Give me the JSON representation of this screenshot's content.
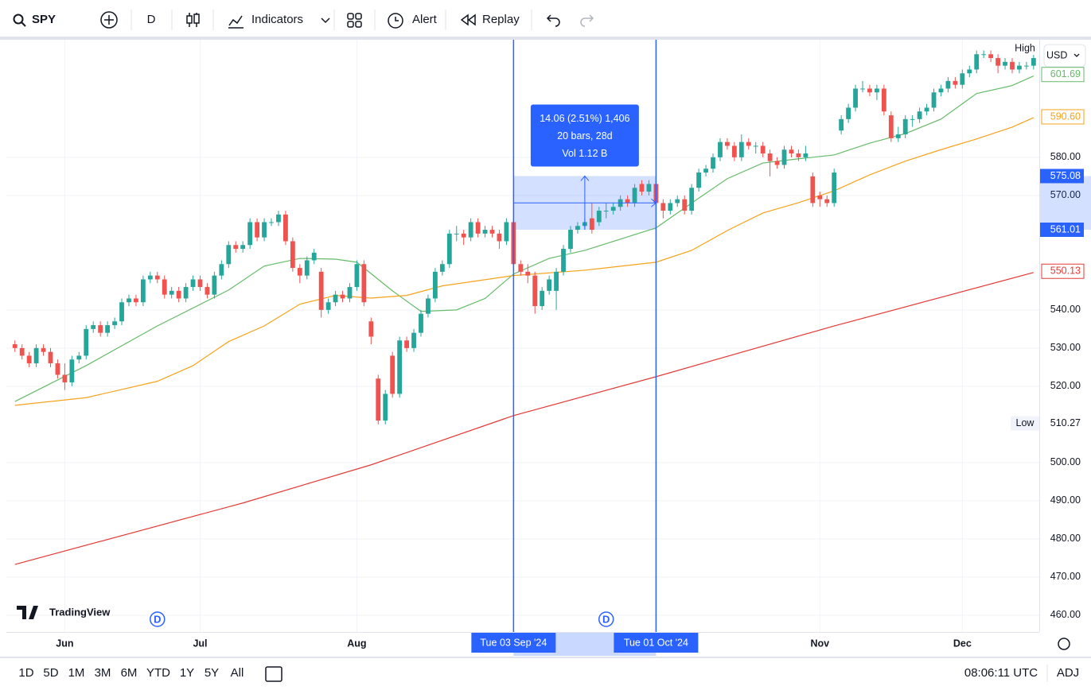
{
  "toolbar": {
    "symbol": "SPY",
    "interval": "D",
    "items": [
      "Indicators",
      "Alert",
      "Replay"
    ]
  },
  "chart_data": {
    "type": "candlestick",
    "up_color": "#26a69a",
    "down_color": "#ef5350",
    "ohlc": [
      [
        531,
        532,
        529,
        530
      ],
      [
        530,
        531,
        527,
        528
      ],
      [
        528,
        529,
        525,
        526
      ],
      [
        526,
        531,
        525,
        530
      ],
      [
        530,
        531,
        528,
        529
      ],
      [
        529,
        530,
        525,
        526
      ],
      [
        526,
        527,
        522,
        523
      ],
      [
        523,
        526,
        519,
        521
      ],
      [
        521,
        528,
        520,
        527
      ],
      [
        527,
        529,
        526,
        528
      ],
      [
        528,
        536,
        527,
        535
      ],
      [
        535,
        537,
        534,
        536
      ],
      [
        536,
        537,
        533,
        534
      ],
      [
        534,
        537,
        533,
        536
      ],
      [
        536,
        538,
        535,
        537
      ],
      [
        537,
        543,
        536,
        542
      ],
      [
        542,
        544,
        541,
        543
      ],
      [
        543,
        544,
        541,
        542
      ],
      [
        542,
        549,
        541,
        548
      ],
      [
        548,
        550,
        547,
        549
      ],
      [
        549,
        550,
        547,
        548
      ],
      [
        548,
        549,
        543,
        544
      ],
      [
        544,
        546,
        543,
        545
      ],
      [
        545,
        546,
        542,
        543
      ],
      [
        543,
        547,
        542,
        546
      ],
      [
        546,
        549,
        545,
        548
      ],
      [
        548,
        549,
        545,
        546
      ],
      [
        546,
        547,
        543,
        544
      ],
      [
        544,
        550,
        543,
        549
      ],
      [
        549,
        553,
        548,
        552
      ],
      [
        552,
        558,
        551,
        557
      ],
      [
        557,
        558,
        555,
        556
      ],
      [
        556,
        558,
        555,
        557
      ],
      [
        557,
        564,
        556,
        563
      ],
      [
        563,
        564,
        558,
        559
      ],
      [
        559,
        564,
        558,
        563
      ],
      [
        563,
        564,
        562,
        563
      ],
      [
        563,
        566,
        562,
        565
      ],
      [
        565,
        566,
        557,
        558
      ],
      [
        558,
        559,
        550,
        551
      ],
      [
        551,
        552,
        547,
        549
      ],
      [
        549,
        554,
        548,
        553
      ],
      [
        553,
        556,
        552,
        555
      ],
      [
        550,
        551,
        538,
        540
      ],
      [
        540,
        543,
        539,
        542
      ],
      [
        542,
        545,
        541,
        544
      ],
      [
        544,
        545,
        542,
        543
      ],
      [
        543,
        547,
        542,
        546
      ],
      [
        546,
        553,
        545,
        552
      ],
      [
        552,
        553,
        541,
        542
      ],
      [
        537,
        538,
        531,
        533
      ],
      [
        522,
        523,
        510,
        511
      ],
      [
        511,
        519,
        510,
        518
      ],
      [
        528,
        529,
        517,
        518
      ],
      [
        518,
        533,
        517,
        532
      ],
      [
        532,
        533,
        529,
        530
      ],
      [
        530,
        535,
        529,
        534
      ],
      [
        534,
        540,
        533,
        539
      ],
      [
        539,
        544,
        538,
        543
      ],
      [
        543,
        551,
        542,
        550
      ],
      [
        550,
        553,
        549,
        552
      ],
      [
        552,
        561,
        551,
        560
      ],
      [
        560,
        562,
        558,
        560
      ],
      [
        560,
        561,
        557,
        559
      ],
      [
        559,
        564,
        558,
        563
      ],
      [
        563,
        564,
        559,
        560
      ],
      [
        560,
        562,
        559,
        561
      ],
      [
        561,
        562,
        559,
        560
      ],
      [
        560,
        561,
        556,
        558
      ],
      [
        558,
        564,
        557,
        563
      ],
      [
        563,
        564,
        551,
        552
      ],
      [
        552,
        553,
        549,
        550
      ],
      [
        550,
        552,
        547,
        549
      ],
      [
        549,
        550,
        539,
        541
      ],
      [
        541,
        546,
        540,
        545
      ],
      [
        545,
        549,
        544,
        548
      ],
      [
        545,
        551,
        540,
        550
      ],
      [
        550,
        557,
        549,
        556
      ],
      [
        556,
        562,
        555,
        561
      ],
      [
        561,
        563,
        560,
        562
      ],
      [
        562,
        564,
        561,
        563
      ],
      [
        564,
        568,
        560,
        561
      ],
      [
        563,
        567,
        562,
        566
      ],
      [
        566,
        568,
        564,
        566
      ],
      [
        566,
        568,
        565,
        567
      ],
      [
        567,
        570,
        566,
        569
      ],
      [
        569,
        570,
        567,
        568
      ],
      [
        568,
        573,
        567,
        572
      ],
      [
        573,
        574,
        570,
        571
      ],
      [
        571,
        574,
        570,
        573
      ],
      [
        573,
        574,
        567,
        568
      ],
      [
        568,
        569,
        564,
        566
      ],
      [
        566,
        569,
        565,
        568
      ],
      [
        568,
        570,
        567,
        569
      ],
      [
        569,
        570,
        565,
        566
      ],
      [
        566,
        573,
        565,
        572
      ],
      [
        572,
        577,
        571,
        576
      ],
      [
        576,
        578,
        575,
        577
      ],
      [
        577,
        581,
        576,
        580
      ],
      [
        580,
        585,
        579,
        584
      ],
      [
        584,
        585,
        582,
        583
      ],
      [
        583,
        584,
        579,
        580
      ],
      [
        580,
        586,
        579,
        584
      ],
      [
        584,
        585,
        582,
        583
      ],
      [
        583,
        584,
        581,
        583
      ],
      [
        583,
        584,
        580,
        581
      ],
      [
        581,
        582,
        575,
        579
      ],
      [
        579,
        580,
        577,
        578
      ],
      [
        578,
        583,
        577,
        582
      ],
      [
        582,
        583,
        580,
        581
      ],
      [
        581,
        582,
        579,
        580
      ],
      [
        580,
        583,
        579,
        581
      ],
      [
        575,
        576,
        567,
        568
      ],
      [
        570,
        571,
        567,
        569
      ],
      [
        569,
        570,
        567,
        568
      ],
      [
        568,
        577,
        567,
        576
      ],
      [
        587,
        591,
        586,
        590
      ],
      [
        590,
        594,
        589,
        593
      ],
      [
        593,
        599,
        592,
        598
      ],
      [
        598,
        600,
        597,
        598
      ],
      [
        598,
        599,
        596,
        597
      ],
      [
        597,
        599,
        595,
        598
      ],
      [
        598,
        599,
        591,
        592
      ],
      [
        591,
        592,
        584,
        585
      ],
      [
        585,
        588,
        584,
        586
      ],
      [
        586,
        591,
        585,
        590
      ],
      [
        590,
        591,
        588,
        590
      ],
      [
        590,
        593,
        589,
        592
      ],
      [
        592,
        594,
        591,
        593
      ],
      [
        593,
        598,
        592,
        597
      ],
      [
        597,
        599,
        596,
        598
      ],
      [
        598,
        601,
        597,
        600
      ],
      [
        600,
        601,
        598,
        599
      ],
      [
        599,
        603,
        598,
        602
      ],
      [
        602,
        604,
        601,
        603
      ],
      [
        603,
        608,
        602,
        607
      ],
      [
        607,
        608,
        606,
        607
      ],
      [
        607,
        608,
        605,
        606
      ],
      [
        606,
        607,
        602,
        604
      ],
      [
        604,
        606,
        603,
        605
      ],
      [
        605,
        606,
        602,
        603
      ],
      [
        603,
        605,
        602,
        604
      ],
      [
        604,
        605,
        603,
        604
      ],
      [
        604,
        607,
        603,
        606
      ]
    ],
    "lines": [
      {
        "color": "#66bb6a",
        "x": [
          0,
          10,
          20,
          30,
          35,
          40,
          45,
          48,
          53,
          57,
          62,
          66,
          70,
          75,
          80,
          90,
          95,
          100,
          105,
          110,
          115,
          120,
          125,
          130,
          135,
          140,
          143
        ],
        "values": [
          516,
          525.4,
          535.8,
          545.2,
          551.5,
          553.5,
          553.3,
          552.5,
          545,
          539.6,
          540,
          543,
          549.4,
          553.5,
          555.6,
          561.5,
          568,
          574.4,
          578.5,
          579.6,
          580.6,
          583.7,
          586.2,
          590,
          596.7,
          598.8,
          601.3
        ]
      },
      {
        "color": "#f7a21b",
        "x": [
          0,
          10,
          20,
          25,
          30,
          35,
          40,
          45,
          50,
          55,
          60,
          70,
          80,
          90,
          95,
          100,
          105,
          110,
          115,
          120,
          125,
          130,
          135,
          140,
          143
        ],
        "values": [
          515,
          517,
          521.3,
          525.4,
          531.7,
          535.8,
          541.5,
          543.8,
          543.1,
          543.8,
          546.3,
          549,
          550.4,
          552.5,
          555.6,
          560.8,
          565.4,
          568.1,
          571.2,
          575.4,
          579,
          582,
          584.8,
          587.9,
          590.4
        ]
      },
      {
        "color": "#e53935",
        "x": [
          0,
          32,
          50,
          70,
          90,
          115,
          143
        ],
        "values": [
          473.3,
          489.4,
          499.4,
          512.3,
          522.5,
          535.8,
          549.8
        ]
      }
    ],
    "xlim": [
      -1.2,
      143.8
    ],
    "xticks": [
      {
        "value": 7,
        "label": "Jun"
      },
      {
        "value": 26,
        "label": "Jul"
      },
      {
        "value": 48,
        "label": "Aug"
      },
      {
        "value": 113,
        "label": "Nov"
      },
      {
        "value": 133,
        "label": "Dec"
      }
    ],
    "ylim": [
      455.6,
      610.8
    ],
    "yticks": [
      {
        "value": 460,
        "label": "460.00"
      },
      {
        "value": 470,
        "label": "470.00"
      },
      {
        "value": 480,
        "label": "480.00"
      },
      {
        "value": 490,
        "label": "490.00"
      },
      {
        "value": 500,
        "label": "500.00"
      },
      {
        "value": 520,
        "label": "520.00"
      },
      {
        "value": 530,
        "label": "530.00"
      },
      {
        "value": 540,
        "label": "540.00"
      },
      {
        "value": 570,
        "label": "570.00"
      },
      {
        "value": 580,
        "label": "580.00"
      }
    ],
    "grid": true,
    "currency": "USD",
    "high_label": "High",
    "low": {
      "label": "Low",
      "value": 510.27,
      "value_label": "510.27"
    },
    "price_tags": [
      {
        "value": 601.69,
        "label": "601.69",
        "color": "#66bb6a"
      },
      {
        "value": 590.6,
        "label": "590.60",
        "color": "#f7a21b"
      },
      {
        "value": 550.13,
        "label": "550.13",
        "color": "#e53935"
      }
    ],
    "measure": {
      "x": [
        70,
        90
      ],
      "x_labels": [
        "Tue 03 Sep '24",
        "Tue 01 Oct '24"
      ],
      "y": [
        561.01,
        575.08
      ],
      "y_labels": [
        "561.01",
        "575.08"
      ],
      "text": [
        "14.06 (2.51%) 1,406",
        "20 bars, 28d",
        "Vol 1.12 B"
      ]
    },
    "events": [
      {
        "x": 20,
        "label": "D"
      },
      {
        "x": 83,
        "label": "D"
      }
    ],
    "watermark": "TradingView"
  },
  "bottom_bar": {
    "ranges": [
      "1D",
      "5D",
      "1M",
      "3M",
      "6M",
      "YTD",
      "1Y",
      "5Y",
      "All"
    ],
    "time": "08:06:11 UTC",
    "adjust": "ADJ"
  }
}
